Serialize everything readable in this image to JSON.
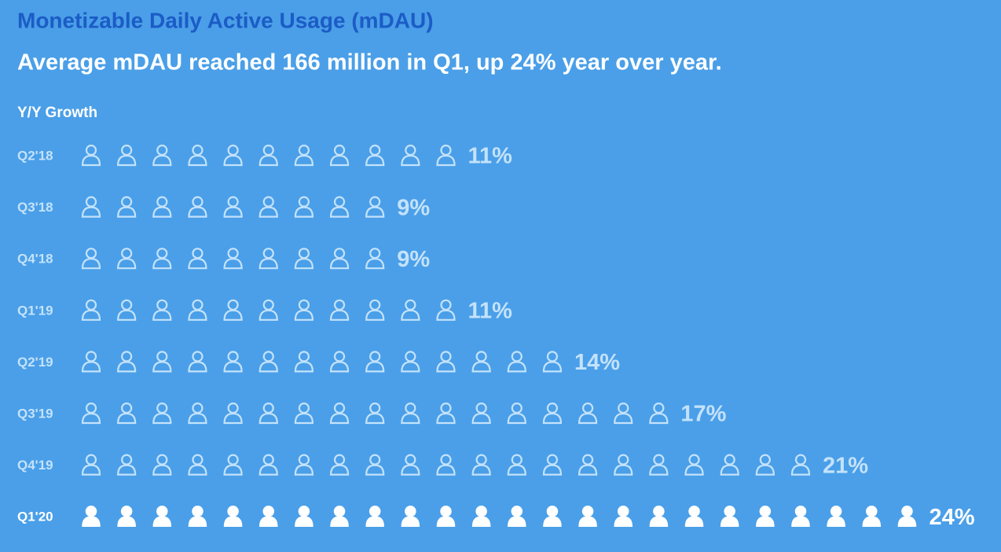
{
  "chart_data": {
    "type": "pictogram",
    "title": "Monetizable Daily Active Usage (mDAU)",
    "subtitle": "Average mDAU reached 166 million in Q1, up 24% year over year.",
    "axis_label": "Y/Y Growth",
    "categories": [
      "Q2'18",
      "Q3'18",
      "Q4'18",
      "Q1'19",
      "Q2'19",
      "Q3'19",
      "Q4'19",
      "Q1'20"
    ],
    "values": [
      11,
      9,
      9,
      11,
      14,
      17,
      21,
      24
    ],
    "value_labels": [
      "11%",
      "9%",
      "9%",
      "11%",
      "14%",
      "17%",
      "21%",
      "24%"
    ],
    "colors": [
      "#c4e2fa",
      "#c4e2fa",
      "#c4e2fa",
      "#c4e2fa",
      "#c4e2fa",
      "#c4e2fa",
      "#c4e2fa",
      "#ffffff"
    ],
    "filled": [
      false,
      false,
      false,
      false,
      false,
      false,
      false,
      true
    ]
  }
}
